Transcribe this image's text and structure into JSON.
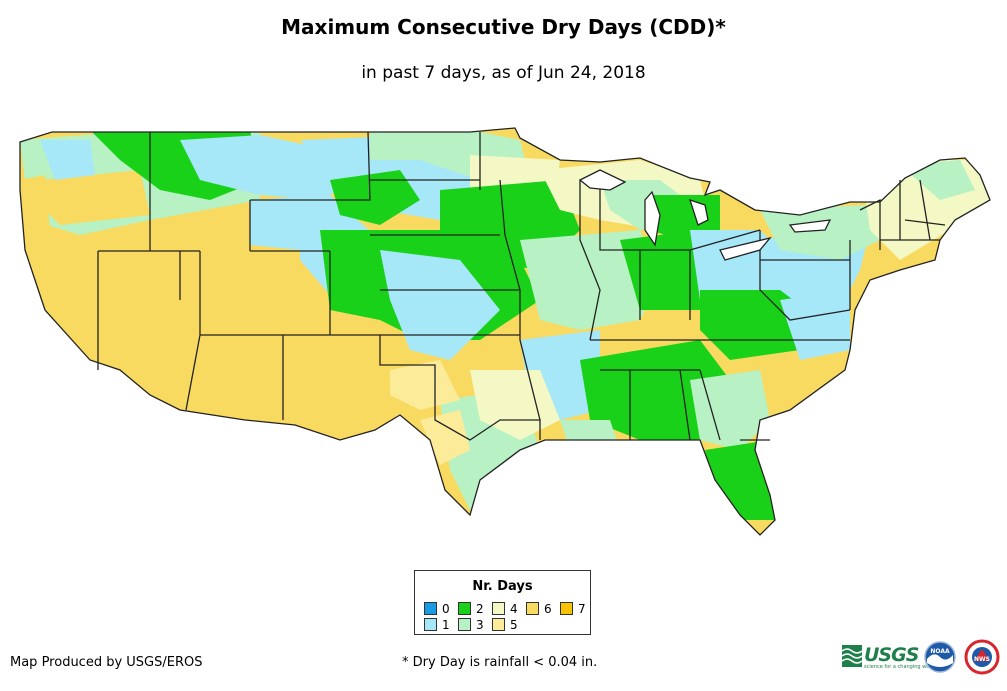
{
  "title": "Maximum Consecutive Dry Days (CDD)*",
  "subtitle": "in past 7 days, as of Jun 24, 2018",
  "legend": {
    "title": "Nr. Days",
    "items": [
      {
        "label": "0",
        "color": "#1a9be6"
      },
      {
        "label": "1",
        "color": "#a6e7f8"
      },
      {
        "label": "2",
        "color": "#19d119"
      },
      {
        "label": "3",
        "color": "#b8f2c4"
      },
      {
        "label": "4",
        "color": "#f3f8c4"
      },
      {
        "label": "5",
        "color": "#fcec9a"
      },
      {
        "label": "6",
        "color": "#f9da61"
      },
      {
        "label": "7",
        "color": "#f9c303"
      }
    ]
  },
  "credit": "Map Produced by USGS/EROS",
  "footnote": "* Dry Day is rainfall < 0.04 in.",
  "logos": {
    "usgs": "USGS",
    "usgs_tagline": "science for a changing world",
    "noaa": "NOAA",
    "nws": "NWS"
  },
  "colors": {
    "border": "#222222",
    "usgs_green": "#1f7f4a",
    "noaa_blue": "#1e5aa8",
    "nws_red": "#d8262c"
  }
}
